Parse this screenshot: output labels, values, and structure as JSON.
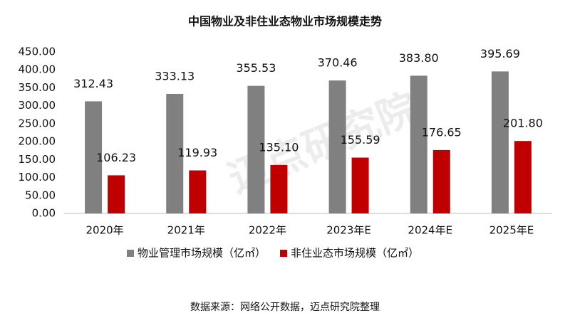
{
  "chart_data": {
    "type": "bar",
    "title": "中国物业及非住业态物业市场规模走势",
    "categories": [
      "2020年",
      "2021年",
      "2022年",
      "2023年E",
      "2024年E",
      "2025年E"
    ],
    "series": [
      {
        "name": "物业管理市场规模（亿㎡）",
        "color": "#808080",
        "values": [
          312.43,
          333.13,
          355.53,
          370.46,
          383.8,
          395.69
        ],
        "value_labels": [
          "312.43",
          "333.13",
          "355.53",
          "370.46",
          "383.80",
          "395.69"
        ]
      },
      {
        "name": "非住业态市场规模（亿㎡）",
        "color": "#c00000",
        "values": [
          106.23,
          119.93,
          135.1,
          155.59,
          176.65,
          201.8
        ],
        "value_labels": [
          "106.23",
          "119.93",
          "135.10",
          "155.59",
          "176.65",
          "201.80"
        ]
      }
    ],
    "ylim": [
      0,
      450
    ],
    "yticks": [
      {
        "value": 0,
        "label": "0.00"
      },
      {
        "value": 50,
        "label": "50.00"
      },
      {
        "value": 100,
        "label": "100.00"
      },
      {
        "value": 150,
        "label": "150.00"
      },
      {
        "value": 200,
        "label": "200.00"
      },
      {
        "value": 250,
        "label": "250.00"
      },
      {
        "value": 300,
        "label": "300.00"
      },
      {
        "value": 350,
        "label": "350.00"
      },
      {
        "value": 400,
        "label": "400.00"
      },
      {
        "value": 450,
        "label": "450.00"
      }
    ],
    "legend": "bottom",
    "watermark": "迈点研究院",
    "source": "数据来源：网络公开数据，迈点研究院整理"
  }
}
